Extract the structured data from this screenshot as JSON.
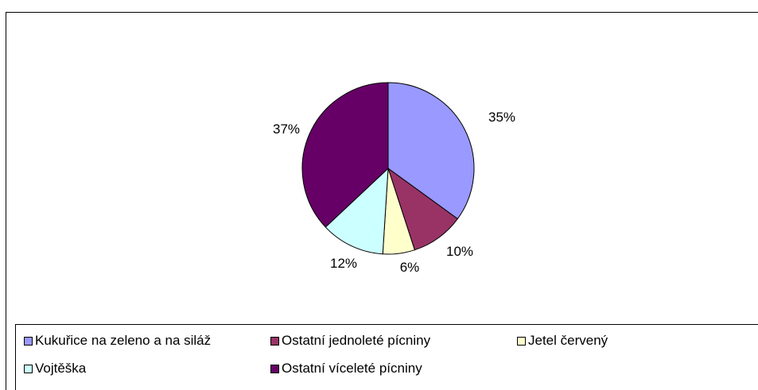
{
  "chart_data": {
    "type": "pie",
    "title": "",
    "slices": [
      {
        "name": "Kukuřice na zeleno a na siláž",
        "value": 35,
        "label": "35%",
        "color": "#9999ff"
      },
      {
        "name": "Ostatní jednoleté pícniny",
        "value": 10,
        "label": "10%",
        "color": "#993366"
      },
      {
        "name": "Jetel červený",
        "value": 6,
        "label": "6%",
        "color": "#ffffcc"
      },
      {
        "name": "Vojtěška",
        "value": 12,
        "label": "12%",
        "color": "#ccffff"
      },
      {
        "name": "Ostatní víceleté pícniny",
        "value": 37,
        "label": "37%",
        "color": "#660066"
      }
    ],
    "legend_position": "bottom"
  },
  "legend": {
    "items": [
      {
        "label": "Kukuřice na zeleno a na siláž",
        "color": "#9999ff"
      },
      {
        "label": "Ostatní jednoleté pícniny",
        "color": "#993366"
      },
      {
        "label": "Jetel červený",
        "color": "#ffffcc"
      },
      {
        "label": "Vojtěška",
        "color": "#ccffff"
      },
      {
        "label": "Ostatní víceleté pícniny",
        "color": "#660066"
      }
    ]
  }
}
